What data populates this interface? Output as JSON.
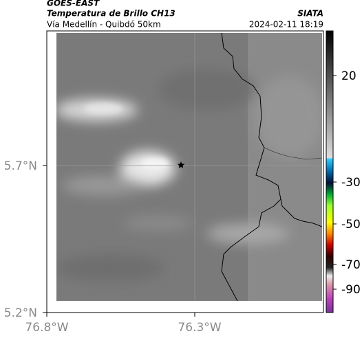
{
  "header": {
    "source": "GOES-EAST",
    "title": "Temperatura de Brillo CH13",
    "subtitle": "Vía Medellín - Quibdó 50km",
    "agency": "SIATA",
    "datetime": "2024-02-11 18:19"
  },
  "map": {
    "lat_labels": [
      "5.7°N",
      "5.2°N"
    ],
    "lon_labels": [
      "76.8°W",
      "76.3°W"
    ]
  },
  "colorbar": {
    "ticks": [
      20,
      -30,
      -50,
      -70,
      -90
    ]
  }
}
